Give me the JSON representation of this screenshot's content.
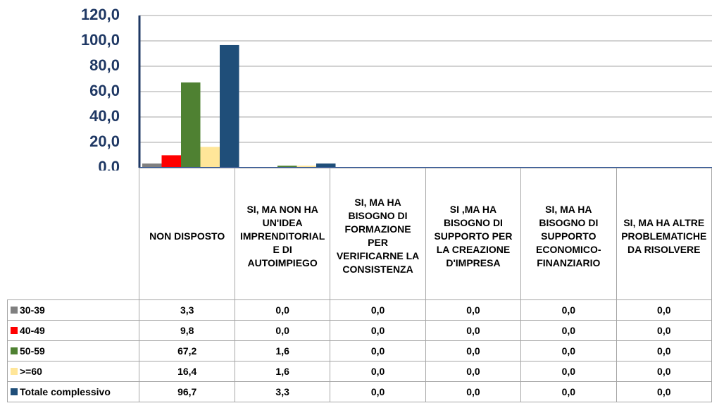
{
  "chart_data": {
    "type": "bar",
    "categories": [
      "NON DISPOSTO",
      "SI, MA NON HA UN'IDEA IMPRENDITORIALE DI AUTOIMPIEGO",
      "SI, MA HA BISOGNO DI FORMAZIONE PER VERIFICARNE LA CONSISTENZA",
      "SI ,MA HA BISOGNO DI SUPPORTO PER LA CREAZIONE D'IMPRESA",
      "SI, MA HA BISOGNO DI SUPPORTO ECONOMICO-FINANZIARIO",
      "SI, MA HA ALTRE PROBLEMATICHE DA RISOLVERE"
    ],
    "series": [
      {
        "name": "30-39",
        "color": "#808080",
        "values": [
          3.3,
          0,
          0,
          0,
          0,
          0
        ],
        "value_labels": [
          "3,3",
          "0,0",
          "0,0",
          "0,0",
          "0,0",
          "0,0"
        ]
      },
      {
        "name": "40-49",
        "color": "#ff0000",
        "values": [
          9.8,
          0,
          0,
          0,
          0,
          0
        ],
        "value_labels": [
          "9,8",
          "0,0",
          "0,0",
          "0,0",
          "0,0",
          "0,0"
        ]
      },
      {
        "name": "50-59",
        "color": "#4f8132",
        "values": [
          67.2,
          1.6,
          0,
          0,
          0,
          0
        ],
        "value_labels": [
          "67,2",
          "1,6",
          "0,0",
          "0,0",
          "0,0",
          "0,0"
        ]
      },
      {
        "name": ">=60",
        "color": "#ffe699",
        "values": [
          16.4,
          1.6,
          0,
          0,
          0,
          0
        ],
        "value_labels": [
          "16,4",
          "1,6",
          "0,0",
          "0,0",
          "0,0",
          "0,0"
        ]
      },
      {
        "name": "Totale complessivo",
        "color": "#1f4e79",
        "values": [
          96.7,
          3.3,
          0,
          0,
          0,
          0
        ],
        "value_labels": [
          "96,7",
          "3,3",
          "0,0",
          "0,0",
          "0,0",
          "0,0"
        ]
      }
    ],
    "ylim": [
      0,
      120
    ],
    "yticks": [
      {
        "value": 0,
        "label": "0,0"
      },
      {
        "value": 20,
        "label": "20,0"
      },
      {
        "value": 40,
        "label": "40,0"
      },
      {
        "value": 60,
        "label": "60,0"
      },
      {
        "value": 80,
        "label": "80,0"
      },
      {
        "value": 100,
        "label": "100,0"
      },
      {
        "value": 120,
        "label": "120,0"
      }
    ],
    "grid": true
  }
}
